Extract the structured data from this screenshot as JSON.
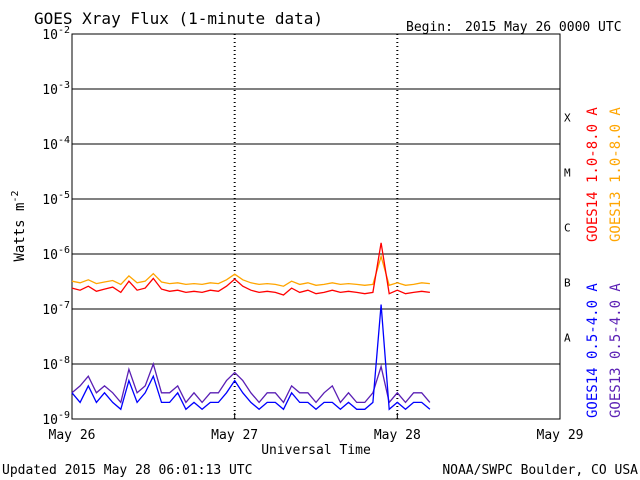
{
  "chart_data": {
    "type": "line",
    "title": "GOES Xray Flux (1-minute data)",
    "begin_label": "Begin:",
    "begin_value": "2015 May 26 0000 UTC",
    "xlabel": "Universal Time",
    "ylabel": "Watts m",
    "ylabel_sup": "-2",
    "yscale": "log",
    "ylim": [
      1e-09,
      0.01
    ],
    "xlim": [
      0,
      3
    ],
    "x_ticks": [
      {
        "value": 0,
        "label": "May 26"
      },
      {
        "value": 1,
        "label": "May 27"
      },
      {
        "value": 2,
        "label": "May 28"
      },
      {
        "value": 3,
        "label": "May 29"
      }
    ],
    "y_ticks": [
      {
        "exp": -2,
        "label": "10",
        "sup": "-2"
      },
      {
        "exp": -3,
        "label": "10",
        "sup": "-3"
      },
      {
        "exp": -4,
        "label": "10",
        "sup": "-4"
      },
      {
        "exp": -5,
        "label": "10",
        "sup": "-5"
      },
      {
        "exp": -6,
        "label": "10",
        "sup": "-6"
      },
      {
        "exp": -7,
        "label": "10",
        "sup": "-7"
      },
      {
        "exp": -8,
        "label": "10",
        "sup": "-8"
      },
      {
        "exp": -9,
        "label": "10",
        "sup": "-9"
      }
    ],
    "flare_classes": [
      {
        "label": "X",
        "exp": -3.5
      },
      {
        "label": "M",
        "exp": -4.5
      },
      {
        "label": "C",
        "exp": -5.5
      },
      {
        "label": "B",
        "exp": -6.5
      },
      {
        "label": "A",
        "exp": -7.5
      }
    ],
    "grid": true,
    "legend_position": "right",
    "series": [
      {
        "name": "GOES14 1.0-8.0 A",
        "color": "#ff0000",
        "x": [
          0,
          0.05,
          0.1,
          0.15,
          0.2,
          0.25,
          0.3,
          0.35,
          0.4,
          0.45,
          0.5,
          0.55,
          0.6,
          0.65,
          0.7,
          0.75,
          0.8,
          0.85,
          0.9,
          0.95,
          1.0,
          1.05,
          1.1,
          1.15,
          1.2,
          1.25,
          1.3,
          1.35,
          1.4,
          1.45,
          1.5,
          1.55,
          1.6,
          1.65,
          1.7,
          1.75,
          1.8,
          1.85,
          1.9,
          1.95,
          2.0,
          2.05,
          2.1,
          2.15,
          2.2
        ],
        "y": [
          2.4e-07,
          2.2e-07,
          2.6e-07,
          2.1e-07,
          2.3e-07,
          2.5e-07,
          2e-07,
          3.2e-07,
          2.2e-07,
          2.4e-07,
          3.6e-07,
          2.3e-07,
          2.1e-07,
          2.2e-07,
          2e-07,
          2.1e-07,
          2e-07,
          2.2e-07,
          2.1e-07,
          2.6e-07,
          3.5e-07,
          2.6e-07,
          2.2e-07,
          2e-07,
          2.1e-07,
          2e-07,
          1.8e-07,
          2.4e-07,
          2e-07,
          2.2e-07,
          1.9e-07,
          2e-07,
          2.2e-07,
          2e-07,
          2.1e-07,
          2e-07,
          1.9e-07,
          2e-07,
          1.6e-06,
          1.9e-07,
          2.2e-07,
          1.9e-07,
          2e-07,
          2.1e-07,
          2e-07
        ]
      },
      {
        "name": "GOES13 1.0-8.0 A",
        "color": "#ffa500",
        "x": [
          0,
          0.05,
          0.1,
          0.15,
          0.2,
          0.25,
          0.3,
          0.35,
          0.4,
          0.45,
          0.5,
          0.55,
          0.6,
          0.65,
          0.7,
          0.75,
          0.8,
          0.85,
          0.9,
          0.95,
          1.0,
          1.05,
          1.1,
          1.15,
          1.2,
          1.25,
          1.3,
          1.35,
          1.4,
          1.45,
          1.5,
          1.55,
          1.6,
          1.65,
          1.7,
          1.75,
          1.8,
          1.85,
          1.9,
          1.95,
          2.0,
          2.05,
          2.1,
          2.15,
          2.2
        ],
        "y": [
          3.2e-07,
          3e-07,
          3.4e-07,
          2.9e-07,
          3.1e-07,
          3.3e-07,
          2.8e-07,
          4e-07,
          3e-07,
          3.2e-07,
          4.4e-07,
          3.1e-07,
          2.9e-07,
          3e-07,
          2.8e-07,
          2.9e-07,
          2.8e-07,
          3e-07,
          2.9e-07,
          3.4e-07,
          4.3e-07,
          3.4e-07,
          3e-07,
          2.8e-07,
          2.9e-07,
          2.8e-07,
          2.6e-07,
          3.2e-07,
          2.8e-07,
          3e-07,
          2.7e-07,
          2.8e-07,
          3e-07,
          2.8e-07,
          2.9e-07,
          2.8e-07,
          2.7e-07,
          2.8e-07,
          9e-07,
          2.7e-07,
          3e-07,
          2.7e-07,
          2.8e-07,
          3e-07,
          2.9e-07
        ]
      },
      {
        "name": "GOES14 0.5-4.0 A",
        "color": "#0000ff",
        "x": [
          0,
          0.05,
          0.1,
          0.15,
          0.2,
          0.25,
          0.3,
          0.35,
          0.4,
          0.45,
          0.5,
          0.55,
          0.6,
          0.65,
          0.7,
          0.75,
          0.8,
          0.85,
          0.9,
          0.95,
          1.0,
          1.05,
          1.1,
          1.15,
          1.2,
          1.25,
          1.3,
          1.35,
          1.4,
          1.45,
          1.5,
          1.55,
          1.6,
          1.65,
          1.7,
          1.75,
          1.8,
          1.85,
          1.9,
          1.95,
          2.0,
          2.05,
          2.1,
          2.15,
          2.2
        ],
        "y": [
          3e-09,
          2e-09,
          4e-09,
          2e-09,
          3e-09,
          2e-09,
          1.5e-09,
          5e-09,
          2e-09,
          3e-09,
          6e-09,
          2e-09,
          2e-09,
          3e-09,
          1.5e-09,
          2e-09,
          1.5e-09,
          2e-09,
          2e-09,
          3e-09,
          5e-09,
          3e-09,
          2e-09,
          1.5e-09,
          2e-09,
          2e-09,
          1.5e-09,
          3e-09,
          2e-09,
          2e-09,
          1.5e-09,
          2e-09,
          2e-09,
          1.5e-09,
          2e-09,
          1.5e-09,
          1.5e-09,
          2e-09,
          1.2e-07,
          1.5e-09,
          2e-09,
          1.5e-09,
          2e-09,
          2e-09,
          1.5e-09
        ]
      },
      {
        "name": "GOES13 0.5-4.0 A",
        "color": "#5a1fb4",
        "x": [
          0,
          0.05,
          0.1,
          0.15,
          0.2,
          0.25,
          0.3,
          0.35,
          0.4,
          0.45,
          0.5,
          0.55,
          0.6,
          0.65,
          0.7,
          0.75,
          0.8,
          0.85,
          0.9,
          0.95,
          1.0,
          1.05,
          1.1,
          1.15,
          1.2,
          1.25,
          1.3,
          1.35,
          1.4,
          1.45,
          1.5,
          1.55,
          1.6,
          1.65,
          1.7,
          1.75,
          1.8,
          1.85,
          1.9,
          1.95,
          2.0,
          2.05,
          2.1,
          2.15,
          2.2
        ],
        "y": [
          3e-09,
          4e-09,
          6e-09,
          3e-09,
          4e-09,
          3e-09,
          2e-09,
          8e-09,
          3e-09,
          4e-09,
          1e-08,
          3e-09,
          3e-09,
          4e-09,
          2e-09,
          3e-09,
          2e-09,
          3e-09,
          3e-09,
          5e-09,
          7e-09,
          5e-09,
          3e-09,
          2e-09,
          3e-09,
          3e-09,
          2e-09,
          4e-09,
          3e-09,
          3e-09,
          2e-09,
          3e-09,
          4e-09,
          2e-09,
          3e-09,
          2e-09,
          2e-09,
          3e-09,
          9e-09,
          2e-09,
          3e-09,
          2e-09,
          3e-09,
          3e-09,
          2e-09
        ]
      }
    ]
  },
  "footer": {
    "updated": "Updated 2015 May 28 06:01:13 UTC",
    "credit": "NOAA/SWPC Boulder, CO USA"
  }
}
